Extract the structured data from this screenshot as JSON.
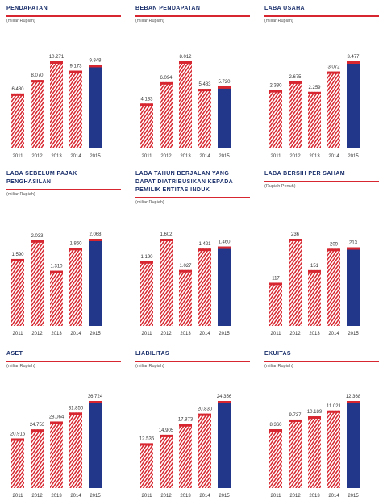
{
  "chart_data": [
    {
      "type": "bar",
      "title": "PENDAPATAN",
      "subtitle": "(miliar Rupiah)",
      "categories": [
        "2011",
        "2012",
        "2013",
        "2014",
        "2015"
      ],
      "values": [
        6480,
        8070,
        10271,
        9173,
        9848
      ],
      "value_labels": [
        "6.480",
        "8.070",
        "10.271",
        "9.173",
        "9.848"
      ],
      "color": "#d7262f",
      "highlight_color": "#22378a"
    },
    {
      "type": "bar",
      "title": "BEBAN PENDAPATAN",
      "subtitle": "(miliar Rupiah)",
      "categories": [
        "2011",
        "2012",
        "2013",
        "2014",
        "2015"
      ],
      "values": [
        4133,
        6094,
        8012,
        5483,
        5720
      ],
      "value_labels": [
        "4.133",
        "6.094",
        "8.012",
        "5.483",
        "5.720"
      ],
      "color": "#d7262f",
      "highlight_color": "#22378a"
    },
    {
      "type": "bar",
      "title": "LABA USAHA",
      "subtitle": "(miliar Rupiah)",
      "categories": [
        "2011",
        "2012",
        "2013",
        "2014",
        "2015"
      ],
      "values": [
        2330,
        2675,
        2259,
        3072,
        3477
      ],
      "value_labels": [
        "2.330",
        "2.675",
        "2.259",
        "3.072",
        "3.477"
      ],
      "color": "#d7262f",
      "highlight_color": "#22378a"
    },
    {
      "type": "bar",
      "title": "LABA SEBELUM PAJAK PENGHASILAN",
      "subtitle": "(miliar Rupiah)",
      "categories": [
        "2011",
        "2012",
        "2013",
        "2014",
        "2015"
      ],
      "values": [
        1590,
        2033,
        1310,
        1850,
        2068
      ],
      "value_labels": [
        "1.590",
        "2.033",
        "1.310",
        "1.850",
        "2.068"
      ],
      "color": "#d7262f",
      "highlight_color": "#22378a"
    },
    {
      "type": "bar",
      "title": "LABA TAHUN BERJALAN YANG DAPAT DIATRIBUSIKAN KEPADA PEMILIK ENTITAS INDUK",
      "subtitle": "(miliar Rupiah)",
      "categories": [
        "2011",
        "2012",
        "2013",
        "2014",
        "2015"
      ],
      "values": [
        1190,
        1602,
        1027,
        1421,
        1460
      ],
      "value_labels": [
        "1.190",
        "1.602",
        "1.027",
        "1.421",
        "1.460"
      ],
      "color": "#d7262f",
      "highlight_color": "#22378a"
    },
    {
      "type": "bar",
      "title": "LABA BERSIH PER SAHAM",
      "subtitle": "(Rupiah Penuh)",
      "categories": [
        "2011",
        "2012",
        "2013",
        "2014",
        "2015"
      ],
      "values": [
        117,
        236,
        151,
        209,
        213
      ],
      "color": "#d7262f",
      "highlight_color": "#22378a"
    },
    {
      "type": "bar",
      "title": "ASET",
      "subtitle": "(miliar Rupiah)",
      "categories": [
        "2011",
        "2012",
        "2013",
        "2014",
        "2015"
      ],
      "values": [
        20916,
        24753,
        28064,
        31850,
        36724
      ],
      "value_labels": [
        "20.916",
        "24.753",
        "28.064",
        "31.850",
        "36.724"
      ],
      "color": "#d7262f",
      "highlight_color": "#22378a"
    },
    {
      "type": "bar",
      "title": "LIABILITAS",
      "subtitle": "(miliar Rupiah)",
      "categories": [
        "2011",
        "2012",
        "2013",
        "2014",
        "2015"
      ],
      "values": [
        12535,
        14905,
        17873,
        20830,
        24356
      ],
      "value_labels": [
        "12.535",
        "14.905",
        "17.873",
        "20.830",
        "24.356"
      ],
      "color": "#d7262f",
      "highlight_color": "#22378a"
    },
    {
      "type": "bar",
      "title": "EKUITAS",
      "subtitle": "(miliar Rupiah)",
      "categories": [
        "2011",
        "2012",
        "2013",
        "2014",
        "2015"
      ],
      "values": [
        8360,
        9737,
        10189,
        11021,
        12368
      ],
      "value_labels": [
        "8.360",
        "9.737",
        "10.189",
        "11.021",
        "12.368"
      ],
      "color": "#d7262f",
      "highlight_color": "#22378a"
    }
  ]
}
